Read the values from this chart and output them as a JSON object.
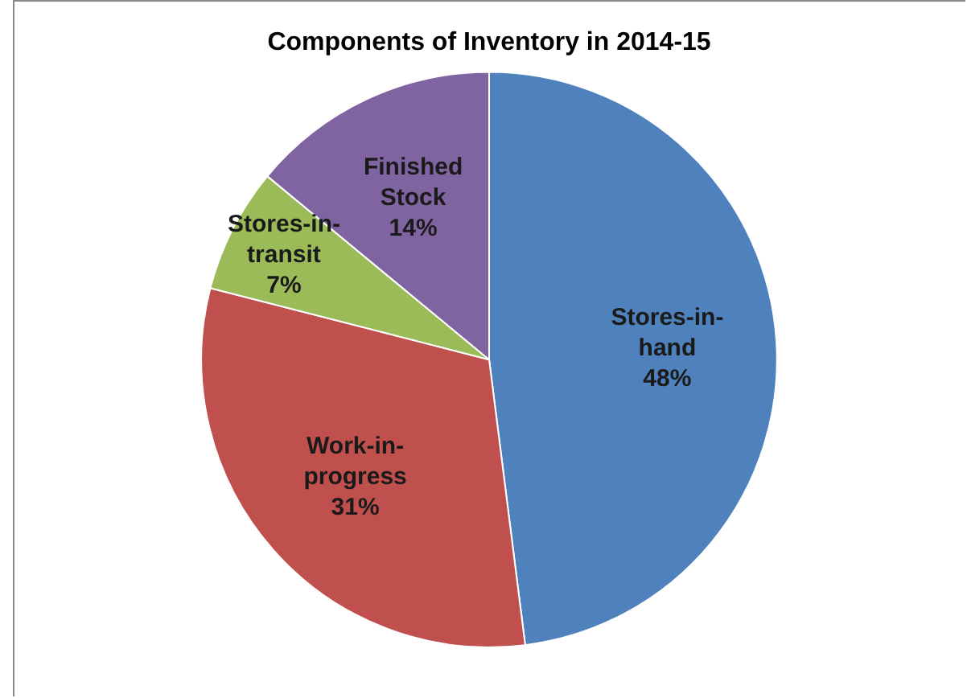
{
  "chart_data": {
    "type": "pie",
    "title": "Components of Inventory in 2014-15",
    "categories": [
      "Stores-in-hand",
      "Work-in-progress",
      "Stores-in-transit",
      "Finished Stock"
    ],
    "values": [
      48,
      31,
      7,
      14
    ],
    "colors": [
      "#4f81bd",
      "#c0504d",
      "#9bbb59",
      "#8064a2"
    ],
    "value_labels": [
      "48%",
      "31%",
      "7%",
      "14%"
    ],
    "legend": false
  }
}
